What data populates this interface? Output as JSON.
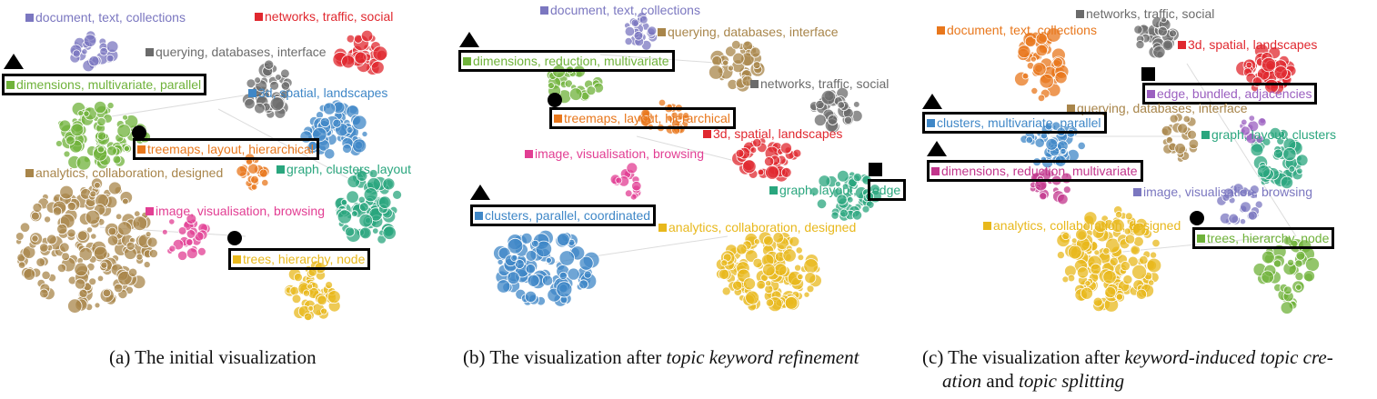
{
  "colors": {
    "purple": "#7b77c0",
    "red": "#e0282f",
    "gray": "#6b6b6b",
    "green": "#6fb23a",
    "blue": "#3f87c7",
    "orange": "#e8771c",
    "tan": "#a8854a",
    "gold": "#e8b81c",
    "teal": "#2aa67e",
    "pink": "#e23e93",
    "magenta": "#c2358c",
    "violet": "#9b5fc0"
  },
  "panels": [
    {
      "id": "a",
      "caption": {
        "prefix": "(a) The initial visualization",
        "em1": "",
        "mid": "",
        "em2": "",
        "suffix": ""
      },
      "labels": [
        {
          "text": "document, text, collections",
          "color": "purple"
        },
        {
          "text": "networks, traffic, social",
          "color": "red"
        },
        {
          "text": "querying, databases, interface",
          "color": "gray"
        },
        {
          "text": "dimensions, multivariate, parallel",
          "color": "green"
        },
        {
          "text": "3d, spatial, landscapes",
          "color": "blue"
        },
        {
          "text": "treemaps, layout, hierarchical",
          "color": "orange"
        },
        {
          "text": "analytics, collaboration, designed",
          "color": "tan"
        },
        {
          "text": "graph, clusters, layout",
          "color": "teal"
        },
        {
          "text": "image, visualisation, browsing",
          "color": "pink"
        },
        {
          "text": "trees, hierarchy, node",
          "color": "gold"
        }
      ]
    },
    {
      "id": "b",
      "caption": {
        "prefix": "(b) The visualization after ",
        "em1": "topic keyword refinement",
        "mid": "",
        "em2": "",
        "suffix": ""
      },
      "labels": [
        {
          "text": "document, text, collections",
          "color": "purple"
        },
        {
          "text": "querying, databases, interface",
          "color": "tan"
        },
        {
          "text": "dimensions, reduction, multivariate",
          "color": "green"
        },
        {
          "text": "networks, traffic, social",
          "color": "gray"
        },
        {
          "text": "treemaps, layout, hierarchical",
          "color": "orange"
        },
        {
          "text": "3d, spatial, landscapes",
          "color": "red"
        },
        {
          "text": "image, visualisation, browsing",
          "color": "pink"
        },
        {
          "text": "graph, layout,",
          "color": "teal"
        },
        {
          "text": "edge",
          "color": "teal"
        },
        {
          "text": "clusters, parallel, coordinated",
          "color": "blue"
        },
        {
          "text": "analytics, collaboration, designed",
          "color": "gold"
        }
      ]
    },
    {
      "id": "c",
      "caption": {
        "prefix": "(c) The visualization after ",
        "em1": "keyword-induced topic cre-",
        "mid": "",
        "em2": "ation",
        "suffix": " and ",
        "em3": "topic splitting"
      },
      "labels": [
        {
          "text": "networks, traffic, social",
          "color": "gray"
        },
        {
          "text": "document, text, collections",
          "color": "orange"
        },
        {
          "text": "3d, spatial, landscapes",
          "color": "red"
        },
        {
          "text": "edge, bundled, adjacencies",
          "color": "violet"
        },
        {
          "text": "querying, databases, interface",
          "color": "tan"
        },
        {
          "text": "clusters, multivariate, parallel",
          "color": "blue"
        },
        {
          "text": "graph, layout, clusters",
          "color": "teal"
        },
        {
          "text": "dimensions, reduction, multivariate",
          "color": "magenta"
        },
        {
          "text": "image, visualisation, browsing",
          "color": "purple"
        },
        {
          "text": "analytics, collaboration, designed",
          "color": "gold"
        },
        {
          "text": "trees, hierarchy, node",
          "color": "green"
        }
      ]
    }
  ]
}
